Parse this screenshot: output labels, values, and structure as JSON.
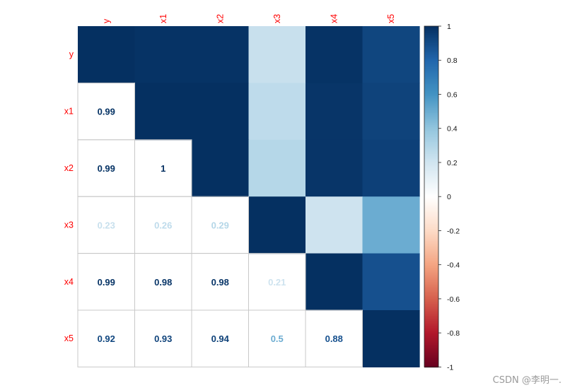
{
  "chart_data": {
    "type": "heatmap",
    "variables": [
      "y",
      "x1",
      "x2",
      "x3",
      "x4",
      "x5"
    ],
    "matrix": [
      [
        1,
        0.99,
        0.99,
        0.23,
        0.99,
        0.92
      ],
      [
        0.99,
        1,
        1,
        0.26,
        0.98,
        0.93
      ],
      [
        0.99,
        1,
        1,
        0.29,
        0.98,
        0.94
      ],
      [
        0.23,
        0.26,
        0.29,
        1,
        0.21,
        0.5
      ],
      [
        0.99,
        0.98,
        0.98,
        0.21,
        1,
        0.88
      ],
      [
        0.92,
        0.93,
        0.94,
        0.5,
        0.88,
        1
      ]
    ],
    "lower_triangle_labels": [
      {
        "row": "x1",
        "col": "y",
        "label": "0.99"
      },
      {
        "row": "x2",
        "col": "y",
        "label": "0.99"
      },
      {
        "row": "x2",
        "col": "x1",
        "label": "1"
      },
      {
        "row": "x3",
        "col": "y",
        "label": "0.23"
      },
      {
        "row": "x3",
        "col": "x1",
        "label": "0.26"
      },
      {
        "row": "x3",
        "col": "x2",
        "label": "0.29"
      },
      {
        "row": "x4",
        "col": "y",
        "label": "0.99"
      },
      {
        "row": "x4",
        "col": "x1",
        "label": "0.98"
      },
      {
        "row": "x4",
        "col": "x2",
        "label": "0.98"
      },
      {
        "row": "x4",
        "col": "x3",
        "label": "0.21"
      },
      {
        "row": "x5",
        "col": "y",
        "label": "0.92"
      },
      {
        "row": "x5",
        "col": "x1",
        "label": "0.93"
      },
      {
        "row": "x5",
        "col": "x2",
        "label": "0.94"
      },
      {
        "row": "x5",
        "col": "x3",
        "label": "0.5"
      },
      {
        "row": "x5",
        "col": "x4",
        "label": "0.88"
      }
    ],
    "legend": {
      "range": [
        -1,
        1
      ],
      "ticks": [
        "1",
        "0.8",
        "0.6",
        "0.4",
        "0.2",
        "0",
        "-0.2",
        "-0.4",
        "-0.6",
        "-0.8",
        "-1"
      ],
      "placement": "right"
    },
    "colors": {
      "label_color": "#ff0000",
      "scale": [
        "#67001f",
        "#b2182b",
        "#d6604d",
        "#f4a582",
        "#fddbc7",
        "#ffffff",
        "#d1e5f0",
        "#92c5de",
        "#4393c3",
        "#2166ac",
        "#053061"
      ]
    }
  },
  "watermark": "CSDN @李明一."
}
